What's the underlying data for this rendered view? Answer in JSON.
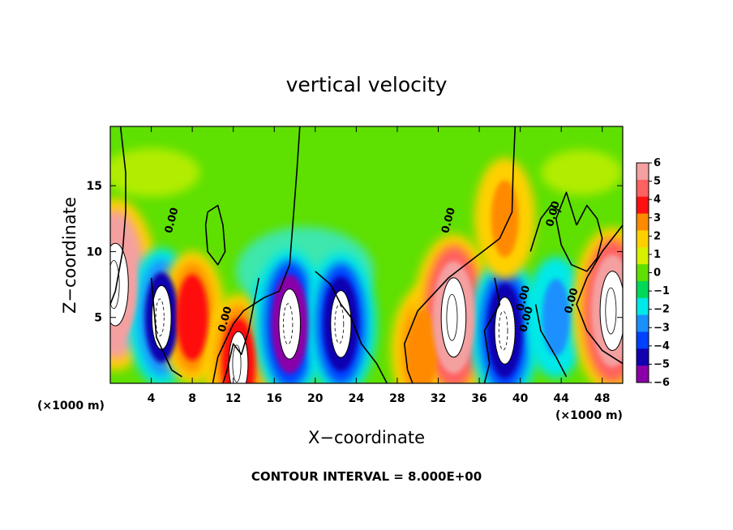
{
  "chart_data": {
    "type": "heatmap",
    "title": "vertical velocity",
    "xlabel": "X−coordinate",
    "ylabel": "Z−coordinate",
    "x_unit_left": "(×1000 m)",
    "x_unit_right": "(×1000 m)",
    "xlim": [
      0,
      50
    ],
    "ylim": [
      0,
      19.5
    ],
    "xticks": [
      4,
      8,
      12,
      16,
      20,
      24,
      28,
      32,
      36,
      40,
      44,
      48
    ],
    "yticks": [
      5,
      10,
      15
    ],
    "colorbar": {
      "ticks": [
        "6",
        "5",
        "4",
        "3",
        "2",
        "1",
        "0",
        "−1",
        "−2",
        "−3",
        "−4",
        "−5",
        "−6"
      ],
      "colors": [
        "#f4a0a0",
        "#ff6060",
        "#ff1010",
        "#ff8a00",
        "#ffd000",
        "#d8f000",
        "#60e000",
        "#00d858",
        "#00e8e8",
        "#1a90ff",
        "#0040ff",
        "#1000b0",
        "#8a00a8"
      ]
    },
    "contour_labels": [
      "0.00",
      "0.00",
      "0.00",
      "0.00",
      "0.00",
      "0.00",
      "0.00"
    ],
    "footer": "CONTOUR INTERVAL = 8.000E+00",
    "features": [
      {
        "x": 0.5,
        "z": 7.5,
        "w": 7.5,
        "kind": "updraft"
      },
      {
        "x": 5.0,
        "z": 5.0,
        "w": -4.5,
        "kind": "downdraft"
      },
      {
        "x": 8.0,
        "z": 5.0,
        "w": 4.0,
        "kind": "updraft"
      },
      {
        "x": 12.5,
        "z": 1.5,
        "w": 4.5,
        "kind": "updraft"
      },
      {
        "x": 17.5,
        "z": 4.5,
        "w": -5.5,
        "kind": "downdraft"
      },
      {
        "x": 22.5,
        "z": 4.5,
        "w": -5.0,
        "kind": "downdraft"
      },
      {
        "x": 30.5,
        "z": 2.5,
        "w": 3.5,
        "kind": "updraft"
      },
      {
        "x": 33.5,
        "z": 5.0,
        "w": 7.0,
        "kind": "updraft"
      },
      {
        "x": 38.5,
        "z": 4.0,
        "w": -5.0,
        "kind": "downdraft"
      },
      {
        "x": 43.5,
        "z": 5.0,
        "w": -3.0,
        "kind": "downdraft"
      },
      {
        "x": 49.0,
        "z": 5.5,
        "w": 7.0,
        "kind": "updraft"
      },
      {
        "x": 38.5,
        "z": 12.5,
        "w": 3.0,
        "kind": "updraft"
      }
    ]
  }
}
